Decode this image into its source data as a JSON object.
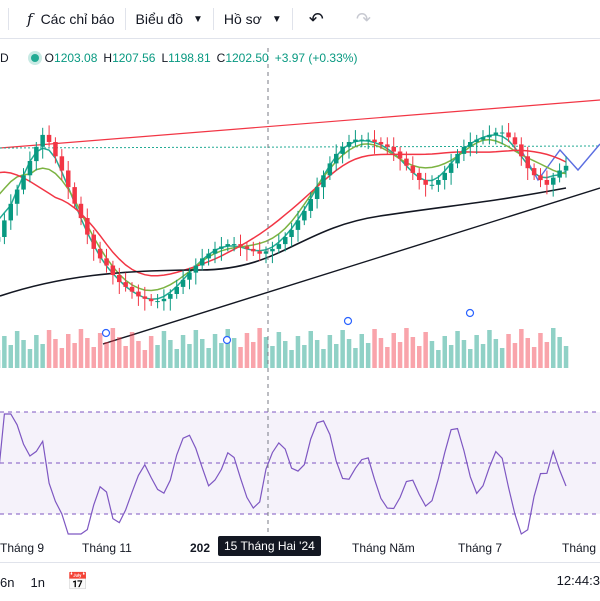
{
  "toolbar": {
    "partial_left": "",
    "indicators_label": "Các chỉ báo",
    "chart_label": "Biểu đồ",
    "profile_label": "Hồ sơ"
  },
  "legend": {
    "partial_symbol": "D",
    "open_key": "O",
    "open": "1203.08",
    "high_key": "H",
    "high": "1207.56",
    "low_key": "L",
    "low": "1198.81",
    "close_key": "C",
    "close": "1202.50",
    "change": "+3.97 (+0.33%)"
  },
  "bottom": {
    "tf_partial": "6n",
    "tf_1n": "1n",
    "clock_partial": "12:44:3"
  },
  "crosshair_label": "15 Tháng Hai '24",
  "chart_data": {
    "type": "candlestick",
    "x_tick_labels": [
      "Tháng 9",
      "Tháng 11",
      "202",
      "Tháng Năm",
      "Tháng 7",
      "Tháng"
    ],
    "price_close": [
      1172,
      1179,
      1186,
      1192,
      1198,
      1204,
      1210,
      1215,
      1212,
      1206,
      1200,
      1193,
      1186,
      1180,
      1173,
      1167,
      1163,
      1160,
      1156,
      1153,
      1151,
      1149,
      1147,
      1146,
      1145,
      1145,
      1146,
      1148,
      1151,
      1154,
      1157,
      1160,
      1163,
      1165,
      1167,
      1168,
      1169,
      1169,
      1168,
      1167,
      1166,
      1165,
      1166,
      1167,
      1169,
      1172,
      1175,
      1179,
      1183,
      1188,
      1193,
      1198,
      1203,
      1207,
      1210,
      1212,
      1213,
      1213,
      1213,
      1212,
      1211,
      1210,
      1208,
      1205,
      1202,
      1199,
      1196,
      1194,
      1194,
      1196,
      1199,
      1203,
      1207,
      1210,
      1212,
      1213,
      1214,
      1215,
      1216,
      1216,
      1214,
      1211,
      1206,
      1201,
      1198,
      1196,
      1194,
      1197,
      1200,
      1202
    ],
    "colors": {
      "up": "#089981",
      "down": "#f23645",
      "ma_fast": "#22ab94",
      "ma_mid": "#7cb342",
      "ma_slow": "#f23645",
      "ma_long": "#131722",
      "rsi": "#7e57c2"
    },
    "grid": false
  }
}
